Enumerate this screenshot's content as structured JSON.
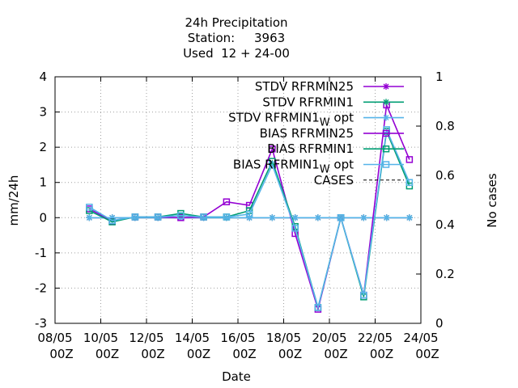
{
  "chart_data": {
    "type": "line",
    "title_lines": [
      "24h Precipitation",
      "Station:     3963",
      "Used  12 + 24-00"
    ],
    "xlabel": "Date",
    "ylabel": "mm/24h",
    "y2label": "No cases",
    "xlim": [
      0,
      16
    ],
    "ylim": [
      -3,
      4
    ],
    "y2lim": [
      0,
      1
    ],
    "grid": true,
    "legend_position": "top-right",
    "x_ticks": [
      {
        "x": 0,
        "line1": "08/05",
        "line2": "00Z"
      },
      {
        "x": 2,
        "line1": "10/05",
        "line2": "00Z"
      },
      {
        "x": 4,
        "line1": "12/05",
        "line2": "00Z"
      },
      {
        "x": 6,
        "line1": "14/05",
        "line2": "00Z"
      },
      {
        "x": 8,
        "line1": "16/05",
        "line2": "00Z"
      },
      {
        "x": 10,
        "line1": "18/05",
        "line2": "00Z"
      },
      {
        "x": 12,
        "line1": "20/05",
        "line2": "00Z"
      },
      {
        "x": 14,
        "line1": "22/05",
        "line2": "00Z"
      },
      {
        "x": 16,
        "line1": "24/05",
        "line2": "00Z"
      }
    ],
    "y_ticks": [
      "4",
      "3",
      "2",
      "1",
      "0",
      "-1",
      "-2",
      "-3"
    ],
    "y2_ticks": [
      "1",
      "0.8",
      "0.6",
      "0.4",
      "0.2",
      "0"
    ],
    "x": [
      1.5,
      2.5,
      3.5,
      4.5,
      5.5,
      6.5,
      7.5,
      8.5,
      9.5,
      10.5,
      11.5,
      12.5,
      13.5,
      14.5,
      15.5
    ],
    "series": [
      {
        "name": "STDV RFRMIN25",
        "color": "#9400d3",
        "marker": "star",
        "axis": "y",
        "values": [
          0,
          0,
          0,
          0,
          0,
          0,
          0,
          0,
          0,
          0,
          0,
          0,
          0,
          0,
          0
        ]
      },
      {
        "name": "STDV RFRMIN1",
        "color": "#009e73",
        "marker": "star",
        "axis": "y",
        "values": [
          0,
          0,
          0,
          0,
          0,
          0,
          0,
          0,
          0,
          0,
          0,
          0,
          0,
          0,
          0
        ]
      },
      {
        "name": "STDV RFRMIN1",
        "name_sub": "W",
        "name_suffix": "opt",
        "color": "#56b4e9",
        "marker": "star",
        "axis": "y",
        "values": [
          0,
          0,
          0,
          0,
          0,
          0,
          0,
          0,
          0,
          0,
          0,
          0,
          0,
          0,
          0
        ]
      },
      {
        "name": "BIAS RFRMIN25",
        "color": "#9400d3",
        "marker": "box",
        "axis": "y",
        "values": [
          0.25,
          -0.1,
          0.02,
          0.02,
          0.0,
          0.02,
          0.45,
          0.35,
          1.95,
          -0.45,
          -2.6,
          0.0,
          -2.2,
          3.2,
          1.65
        ]
      },
      {
        "name": "BIAS RFRMIN1",
        "color": "#009e73",
        "marker": "box",
        "axis": "y",
        "values": [
          0.2,
          -0.12,
          0.02,
          0.02,
          0.12,
          0.02,
          0.02,
          0.2,
          1.6,
          -0.25,
          -2.55,
          0.0,
          -2.25,
          2.45,
          0.9
        ]
      },
      {
        "name": "BIAS RFRMIN1",
        "name_sub": "W",
        "name_suffix": "opt",
        "color": "#56b4e9",
        "marker": "box",
        "axis": "y",
        "values": [
          0.3,
          -0.08,
          0.02,
          0.02,
          0.06,
          0.02,
          0.02,
          0.1,
          1.5,
          -0.3,
          -2.55,
          0.0,
          -2.2,
          2.5,
          1.0
        ]
      },
      {
        "name": "CASES",
        "color": "#000000",
        "marker": "none",
        "dashed": true,
        "axis": "y2",
        "values": [
          0,
          0,
          0,
          0,
          0,
          0,
          0,
          0,
          0,
          0,
          0,
          0,
          0,
          0,
          0
        ]
      }
    ]
  }
}
